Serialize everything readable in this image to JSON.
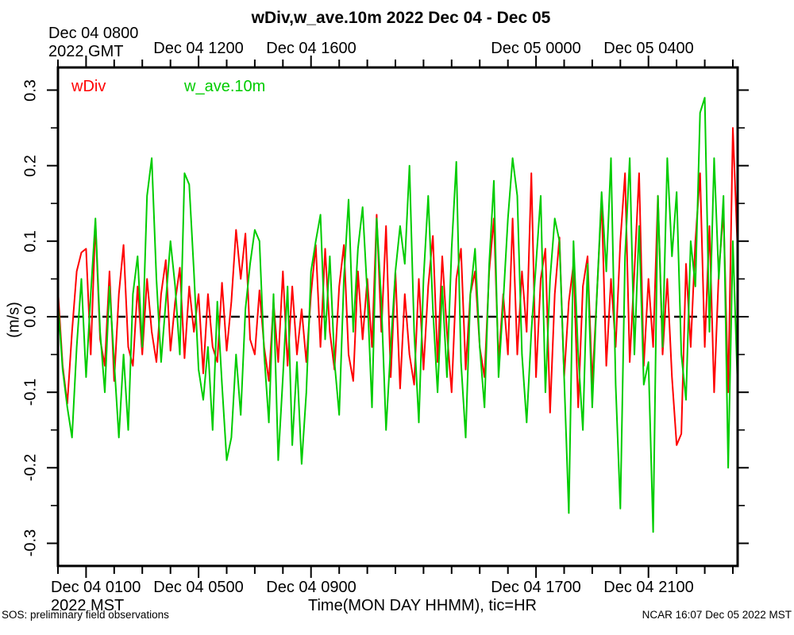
{
  "window": {
    "background": "#ffffff",
    "axis_color": "#000000"
  },
  "chart_data": {
    "type": "line",
    "title": "wDiv,w_ave.10m 2022 Dec 04 - Dec 05",
    "xlabel": "Time(MON DAY HHMM), tic=HR",
    "ylabel": "(m/s)",
    "ylim": [
      -0.33,
      0.33
    ],
    "x_hours_range": [
      0,
      24.17
    ],
    "x_tick_step_hours": 1,
    "labeled_hours": [
      1,
      5,
      9,
      17,
      21
    ],
    "y_major_ticks": [
      0.3,
      0.2,
      0.1,
      0.0,
      -0.1,
      -0.2,
      -0.3
    ],
    "y_tick_labels": [
      "0.3",
      "0.2",
      "0.1",
      "0.0",
      "-0.1",
      "-0.2",
      "-0.3"
    ],
    "y_minor_ticks": [
      0.25,
      0.15,
      0.05,
      -0.05,
      -0.15,
      -0.25
    ],
    "grid": "off",
    "zero_line": {
      "value": 0,
      "style": "dashed",
      "color": "#000000"
    },
    "top_axis": {
      "labels": [
        {
          "hour": 1,
          "lines": [
            "Dec 04 0800",
            "2022 GMT"
          ]
        },
        {
          "hour": 5,
          "lines": [
            "Dec 04 1200"
          ]
        },
        {
          "hour": 9,
          "lines": [
            "Dec 04 1600"
          ]
        },
        {
          "hour": 17,
          "lines": [
            "Dec 05 0000"
          ]
        },
        {
          "hour": 21,
          "lines": [
            "Dec 05 0400"
          ]
        }
      ]
    },
    "bottom_axis": {
      "labels": [
        {
          "hour": 1,
          "lines": [
            "Dec 04 0100",
            "2022 MST"
          ]
        },
        {
          "hour": 5,
          "lines": [
            "Dec 04 0500"
          ]
        },
        {
          "hour": 9,
          "lines": [
            "Dec 04 0900"
          ]
        },
        {
          "hour": 17,
          "lines": [
            "Dec 04 1700"
          ]
        },
        {
          "hour": 21,
          "lines": [
            "Dec 04 2100"
          ]
        }
      ]
    },
    "legend": [
      {
        "label": "wDiv",
        "color": "#ff0000"
      },
      {
        "label": "w_ave.10m",
        "color": "#00cc00"
      }
    ],
    "series": [
      {
        "name": "wDiv",
        "color": "#ff0000",
        "start_hour": 0,
        "step_hours": 0.16667,
        "values": [
          0.035,
          -0.065,
          -0.115,
          -0.02,
          0.06,
          0.085,
          0.09,
          -0.05,
          0.125,
          -0.03,
          -0.065,
          0.06,
          -0.085,
          0.03,
          0.095,
          -0.04,
          -0.065,
          0.04,
          -0.05,
          0.05,
          -0.02,
          -0.06,
          0.03,
          0.075,
          -0.045,
          0.02,
          0.065,
          -0.055,
          0.04,
          -0.02,
          0.03,
          -0.075,
          0.03,
          -0.04,
          -0.06,
          0.045,
          -0.045,
          0.02,
          0.115,
          0.05,
          0.11,
          -0.03,
          -0.05,
          0.035,
          -0.04,
          -0.085,
          0.02,
          -0.06,
          0.06,
          -0.065,
          0.04,
          -0.05,
          0.01,
          -0.06,
          0.03,
          0.095,
          -0.04,
          0.09,
          -0.02,
          -0.07,
          0.04,
          0.095,
          -0.05,
          -0.085,
          0.06,
          -0.03,
          0.05,
          -0.04,
          0.135,
          -0.02,
          0.12,
          -0.08,
          0.06,
          -0.095,
          0.03,
          -0.05,
          -0.09,
          0.05,
          -0.07,
          0.04,
          0.107,
          -0.06,
          0.08,
          -0.02,
          -0.1,
          0.05,
          0.09,
          -0.07,
          0.03,
          0.06,
          -0.04,
          -0.08,
          0.06,
          0.13,
          -0.06,
          0.03,
          -0.05,
          0.13,
          -0.05,
          0.06,
          -0.02,
          0.19,
          -0.08,
          0.05,
          0.09,
          -0.127,
          0.03,
          0.105,
          -0.08,
          0.02,
          0.07,
          -0.12,
          0.04,
          0.08,
          -0.09,
          0.03,
          0.155,
          -0.065,
          0.05,
          -0.04,
          0.1,
          0.19,
          -0.06,
          0.06,
          0.19,
          -0.065,
          0.05,
          -0.04,
          0.16,
          -0.05,
          0.05,
          -0.08,
          -0.17,
          -0.155,
          0.07,
          -0.04,
          0.1,
          0.19,
          -0.04,
          0.12,
          -0.1,
          0.06,
          0.14,
          -0.1,
          0.25,
          0.09
        ]
      },
      {
        "name": "w_ave.10m",
        "color": "#00cc00",
        "start_hour": 0,
        "step_hours": 0.16667,
        "values": [
          0.02,
          -0.07,
          -0.12,
          -0.16,
          -0.04,
          0.05,
          -0.08,
          0.03,
          0.13,
          -0.02,
          -0.1,
          0.04,
          -0.06,
          -0.16,
          -0.05,
          -0.15,
          0.03,
          0.08,
          -0.04,
          0.16,
          0.21,
          0.05,
          -0.06,
          0.02,
          0.1,
          0.04,
          -0.05,
          0.19,
          0.175,
          0.06,
          -0.07,
          -0.11,
          -0.04,
          -0.15,
          0.02,
          -0.09,
          -0.19,
          -0.16,
          -0.05,
          -0.13,
          0.01,
          0.07,
          0.115,
          0.1,
          -0.05,
          -0.14,
          0.03,
          -0.19,
          -0.08,
          0.04,
          -0.17,
          -0.06,
          -0.195,
          -0.1,
          0.06,
          0.1,
          0.135,
          -0.03,
          0.08,
          -0.06,
          -0.13,
          0.05,
          0.155,
          -0.02,
          0.09,
          0.145,
          0.03,
          -0.12,
          0.13,
          0.02,
          -0.15,
          -0.04,
          0.06,
          0.12,
          0.07,
          0.2,
          -0.02,
          -0.14,
          0.05,
          0.16,
          0.01,
          -0.1,
          0.04,
          -0.08,
          0.09,
          0.205,
          -0.06,
          -0.16,
          0.03,
          0.09,
          -0.04,
          -0.12,
          0.07,
          0.18,
          -0.08,
          0.02,
          0.13,
          0.21,
          0.16,
          -0.05,
          -0.14,
          -0.02,
          0.07,
          0.16,
          -0.1,
          0.05,
          0.13,
          0.1,
          -0.08,
          -0.26,
          0.1,
          -0.05,
          -0.15,
          0.07,
          -0.12,
          0.03,
          0.165,
          0.06,
          0.21,
          -0.09,
          -0.254,
          0.08,
          0.21,
          -0.05,
          0.12,
          -0.09,
          -0.06,
          -0.285,
          0.16,
          -0.04,
          0.21,
          0.08,
          0.165,
          -0.05,
          -0.11,
          0.1,
          0.04,
          0.27,
          0.29,
          -0.02,
          0.21,
          0.05,
          0.16,
          -0.2,
          0.1,
          -0.09
        ]
      }
    ],
    "footer_left": "SOS: preliminary field observations",
    "footer_right": "NCAR 16:07 Dec 05 2022 MST"
  }
}
